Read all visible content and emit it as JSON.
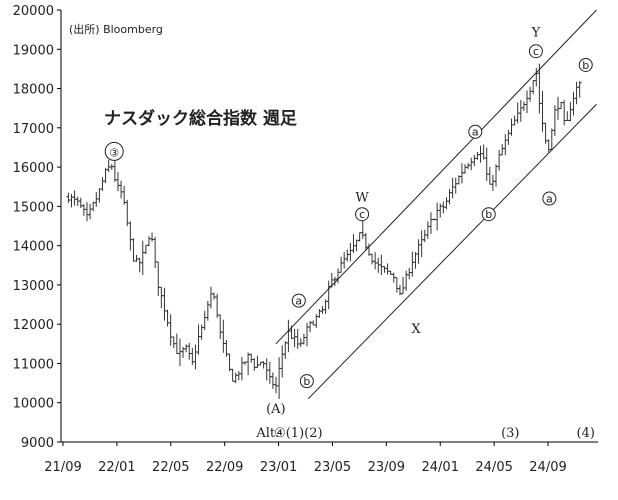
{
  "chart_data": {
    "type": "bar",
    "subtype": "weekly-ohlc",
    "title": "ナスダック総合指数 週足",
    "source": "(出所) Bloomberg",
    "ylim": [
      9000,
      20000
    ],
    "y_ticks": [
      9000,
      10000,
      11000,
      12000,
      13000,
      14000,
      15000,
      16000,
      17000,
      18000,
      19000,
      20000
    ],
    "x_tick_labels": [
      "21/09",
      "22/01",
      "22/05",
      "22/09",
      "23/01",
      "23/05",
      "23/09",
      "24/01",
      "24/05",
      "24/09"
    ],
    "x_tick_months": [
      0,
      4,
      8,
      12,
      16,
      20,
      24,
      28,
      32,
      36
    ],
    "x_range_months": [
      0,
      39.3
    ],
    "grid": false,
    "legend": "none",
    "bar_color": "#333333",
    "channel_color": "#222222",
    "anchors": [
      {
        "m": 0.4,
        "v": 15250
      },
      {
        "m": 1.2,
        "v": 15050
      },
      {
        "m": 1.8,
        "v": 14700
      },
      {
        "m": 2.6,
        "v": 15300
      },
      {
        "m": 3.2,
        "v": 15900
      },
      {
        "m": 3.6,
        "v": 16057
      },
      {
        "m": 4.0,
        "v": 15500
      },
      {
        "m": 4.4,
        "v": 15300
      },
      {
        "m": 4.9,
        "v": 14300
      },
      {
        "m": 5.2,
        "v": 13700
      },
      {
        "m": 5.6,
        "v": 13500
      },
      {
        "m": 6.1,
        "v": 13900
      },
      {
        "m": 6.5,
        "v": 14400
      },
      {
        "m": 7.0,
        "v": 13100
      },
      {
        "m": 7.6,
        "v": 12300
      },
      {
        "m": 8.1,
        "v": 11600
      },
      {
        "m": 8.6,
        "v": 11200
      },
      {
        "m": 9.1,
        "v": 11400
      },
      {
        "m": 9.6,
        "v": 11000
      },
      {
        "m": 10.0,
        "v": 11600
      },
      {
        "m": 10.6,
        "v": 12200
      },
      {
        "m": 10.9,
        "v": 12800
      },
      {
        "m": 11.3,
        "v": 12600
      },
      {
        "m": 11.7,
        "v": 11700
      },
      {
        "m": 12.1,
        "v": 11200
      },
      {
        "m": 12.5,
        "v": 10600
      },
      {
        "m": 12.9,
        "v": 10700
      },
      {
        "m": 13.4,
        "v": 11000
      },
      {
        "m": 13.8,
        "v": 11200
      },
      {
        "m": 14.3,
        "v": 10900
      },
      {
        "m": 14.8,
        "v": 11100
      },
      {
        "m": 15.3,
        "v": 10600
      },
      {
        "m": 15.8,
        "v": 10400
      },
      {
        "m": 16.3,
        "v": 11300
      },
      {
        "m": 16.7,
        "v": 11800
      },
      {
        "m": 17.2,
        "v": 11600
      },
      {
        "m": 17.6,
        "v": 11400
      },
      {
        "m": 18.0,
        "v": 11800
      },
      {
        "m": 18.4,
        "v": 12000
      },
      {
        "m": 18.9,
        "v": 12200
      },
      {
        "m": 19.4,
        "v": 12400
      },
      {
        "m": 19.8,
        "v": 13000
      },
      {
        "m": 20.3,
        "v": 13300
      },
      {
        "m": 20.8,
        "v": 13600
      },
      {
        "m": 21.3,
        "v": 13800
      },
      {
        "m": 21.8,
        "v": 14100
      },
      {
        "m": 22.1,
        "v": 14300
      },
      {
        "m": 22.5,
        "v": 14000
      },
      {
        "m": 22.9,
        "v": 13700
      },
      {
        "m": 23.3,
        "v": 13500
      },
      {
        "m": 23.7,
        "v": 13400
      },
      {
        "m": 24.2,
        "v": 13300
      },
      {
        "m": 24.6,
        "v": 13200
      },
      {
        "m": 25.0,
        "v": 12700
      },
      {
        "m": 25.4,
        "v": 13100
      },
      {
        "m": 25.9,
        "v": 13600
      },
      {
        "m": 26.3,
        "v": 13900
      },
      {
        "m": 26.8,
        "v": 14200
      },
      {
        "m": 27.3,
        "v": 14600
      },
      {
        "m": 27.8,
        "v": 14900
      },
      {
        "m": 28.3,
        "v": 15000
      },
      {
        "m": 28.8,
        "v": 15400
      },
      {
        "m": 29.3,
        "v": 15700
      },
      {
        "m": 29.8,
        "v": 16000
      },
      {
        "m": 30.3,
        "v": 16200
      },
      {
        "m": 30.8,
        "v": 16400
      },
      {
        "m": 31.3,
        "v": 16200
      },
      {
        "m": 31.6,
        "v": 15400
      },
      {
        "m": 32.0,
        "v": 15800
      },
      {
        "m": 32.4,
        "v": 16300
      },
      {
        "m": 32.9,
        "v": 16700
      },
      {
        "m": 33.4,
        "v": 17100
      },
      {
        "m": 33.9,
        "v": 17400
      },
      {
        "m": 34.4,
        "v": 17800
      },
      {
        "m": 34.8,
        "v": 18100
      },
      {
        "m": 35.1,
        "v": 18500
      },
      {
        "m": 35.4,
        "v": 17500
      },
      {
        "m": 35.8,
        "v": 16700
      },
      {
        "m": 36.1,
        "v": 16500
      },
      {
        "m": 36.5,
        "v": 17400
      },
      {
        "m": 36.9,
        "v": 17700
      },
      {
        "m": 37.3,
        "v": 16900
      },
      {
        "m": 37.7,
        "v": 17600
      },
      {
        "m": 38.1,
        "v": 18000
      },
      {
        "m": 38.5,
        "v": 18200
      }
    ],
    "channels": [
      {
        "from": {
          "m": 15.8,
          "v": 11500
        },
        "to": {
          "m": 39.6,
          "v": 20000
        }
      },
      {
        "from": {
          "m": 18.2,
          "v": 10100
        },
        "to": {
          "m": 39.6,
          "v": 17600
        }
      }
    ],
    "annotations": [
      {
        "text": "③",
        "circled": true,
        "m": 3.8,
        "v": 16400,
        "style": "large-circle"
      },
      {
        "text": "(A)",
        "circled": false,
        "m": 15.8,
        "v": 9870
      },
      {
        "text": "a",
        "circled": true,
        "m": 17.5,
        "v": 12600
      },
      {
        "text": "b",
        "circled": true,
        "m": 18.1,
        "v": 10550
      },
      {
        "text": "W",
        "circled": false,
        "m": 22.2,
        "v": 15250
      },
      {
        "text": "c",
        "circled": true,
        "m": 22.2,
        "v": 14800
      },
      {
        "text": "X",
        "circled": false,
        "m": 26.2,
        "v": 11900
      },
      {
        "text": "a",
        "circled": true,
        "m": 30.6,
        "v": 16900
      },
      {
        "text": "b",
        "circled": true,
        "m": 31.6,
        "v": 14800
      },
      {
        "text": "Y",
        "circled": false,
        "m": 35.1,
        "v": 19450
      },
      {
        "text": "c",
        "circled": true,
        "m": 35.1,
        "v": 18950
      },
      {
        "text": "a",
        "circled": true,
        "m": 36.1,
        "v": 15200
      },
      {
        "text": "b",
        "circled": true,
        "m": 38.8,
        "v": 18600
      }
    ],
    "bottom_labels": [
      {
        "text": "Alt.",
        "m": 15.2
      },
      {
        "text": "④",
        "m": 16.1
      },
      {
        "text": "(1)(2)",
        "m": 17.9
      },
      {
        "text": "(3)",
        "m": 33.2
      },
      {
        "text": "(4)",
        "m": 38.8
      }
    ]
  }
}
